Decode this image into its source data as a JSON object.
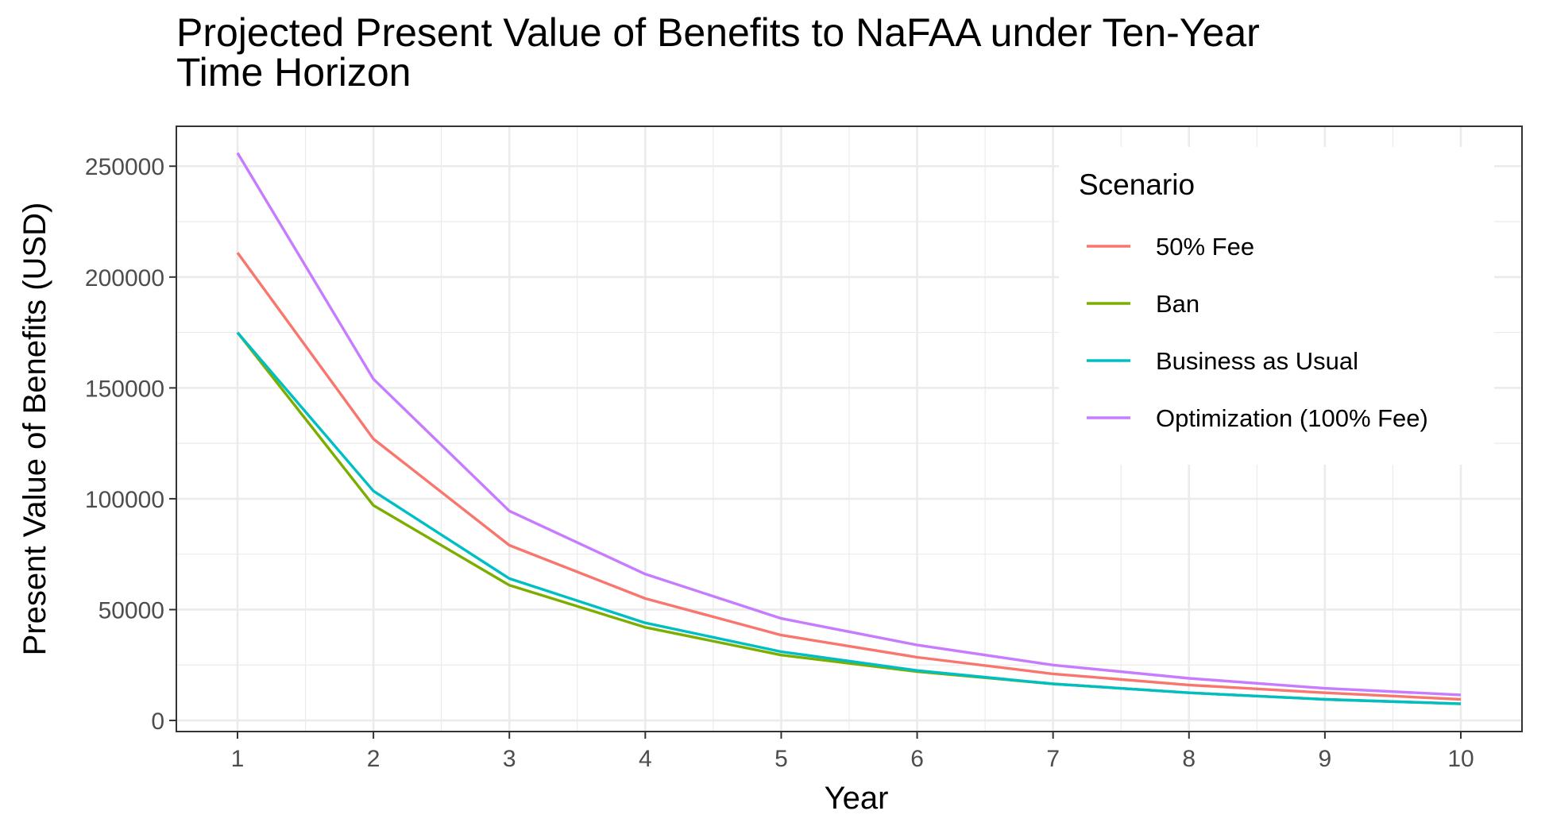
{
  "chart_data": {
    "type": "line",
    "title_lines": [
      "Projected Present Value of Benefits to NaFAA under Ten-Year",
      "Time Horizon"
    ],
    "xlabel": "Year",
    "ylabel": "Present Value of Benefits (USD)",
    "x": [
      1,
      2,
      3,
      4,
      5,
      6,
      7,
      8,
      9,
      10
    ],
    "x_ticks": [
      "1",
      "2",
      "3",
      "4",
      "5",
      "6",
      "7",
      "8",
      "9",
      "10"
    ],
    "y_ticks": [
      "0",
      "50000",
      "100000",
      "150000",
      "200000",
      "250000"
    ],
    "y_tick_values": [
      0,
      50000,
      100000,
      150000,
      200000,
      250000
    ],
    "xlim": [
      0.55,
      10.45
    ],
    "ylim": [
      -5000,
      268000
    ],
    "grid": true,
    "legend": {
      "title": "Scenario",
      "position": "top-right"
    },
    "series": [
      {
        "name": "50% Fee",
        "color": "#F8766D",
        "values": [
          211000,
          127000,
          79000,
          55000,
          38500,
          28500,
          21000,
          16000,
          12500,
          9500
        ]
      },
      {
        "name": "Ban",
        "color": "#7CAE00",
        "values": [
          175000,
          97000,
          61000,
          42000,
          29500,
          22000,
          16500,
          12500,
          9500,
          7500
        ]
      },
      {
        "name": "Business as Usual",
        "color": "#00BFC4",
        "values": [
          175000,
          103500,
          64000,
          44000,
          31000,
          22500,
          16500,
          12500,
          9500,
          7500
        ]
      },
      {
        "name": "Optimization (100% Fee)",
        "color": "#C77CFF",
        "values": [
          256000,
          154000,
          94500,
          66000,
          46000,
          34000,
          25000,
          19000,
          14500,
          11500
        ]
      }
    ]
  }
}
